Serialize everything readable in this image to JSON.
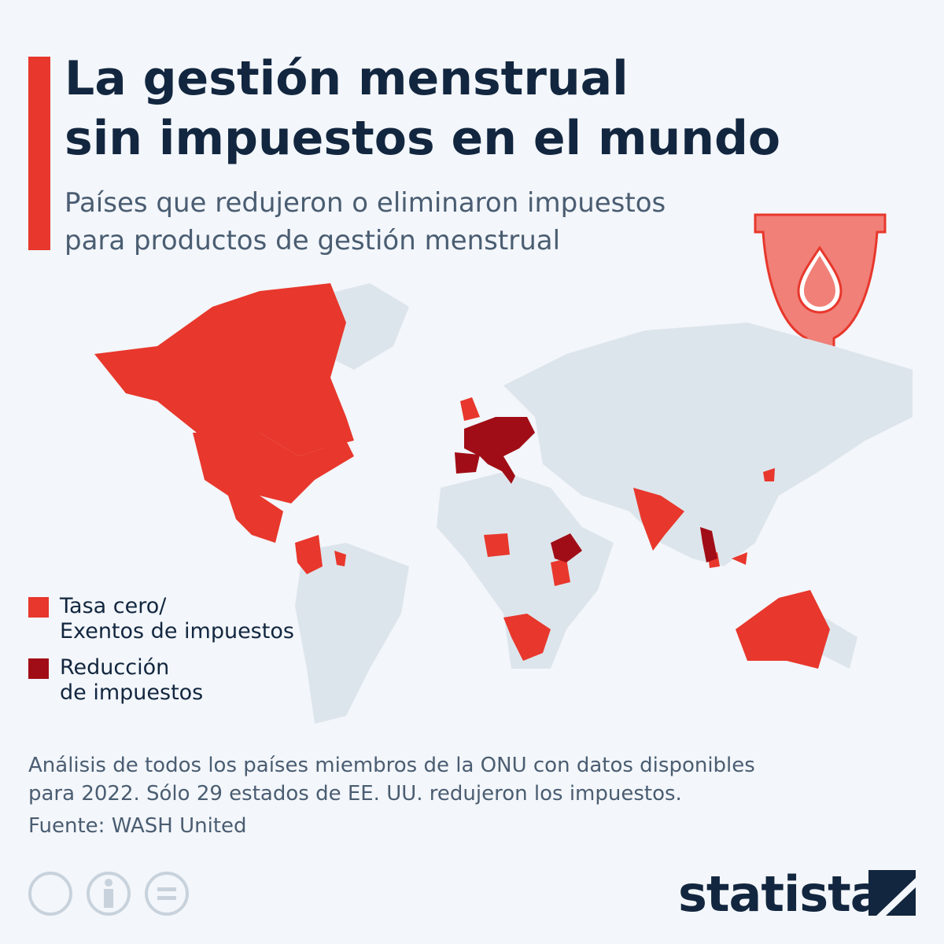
{
  "header": {
    "title": "La gestión menstrual\nsin impuestos en el mundo",
    "subtitle": "Países que redujeron o eliminaron impuestos\npara productos de gestión menstrual"
  },
  "legend": [
    {
      "label": "Tasa cero/\nExentos de impuestos",
      "color": "#e8372c"
    },
    {
      "label": "Reducción\nde impuestos",
      "color": "#a10d16"
    }
  ],
  "footer": {
    "note": "Análisis de todos los países miembros de la ONU con datos disponibles\npara 2022. Sólo 29 estados de EE. UU. redujeron los impuestos.",
    "source": "Fuente: WASH United",
    "brand": "statista"
  }
}
